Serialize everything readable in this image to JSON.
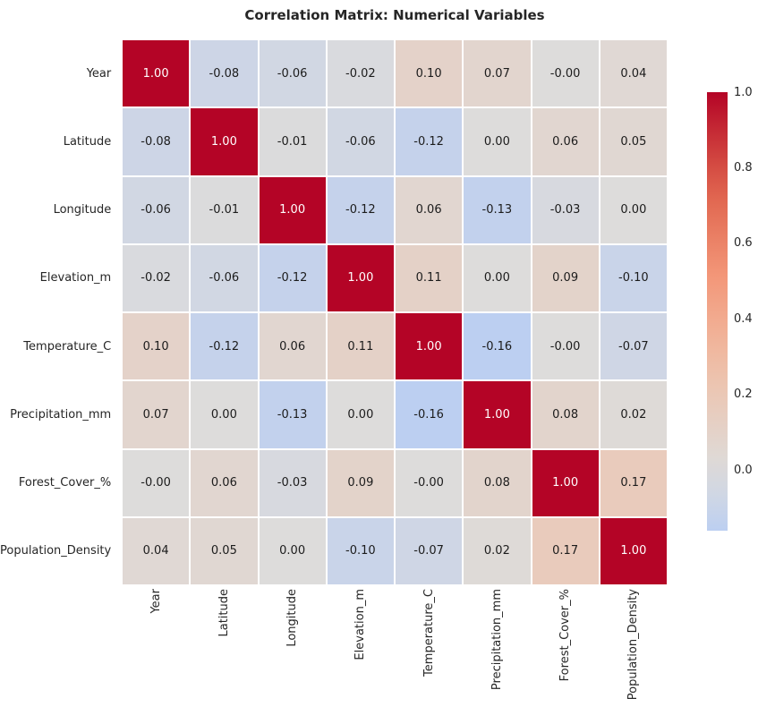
{
  "title": "Correlation Matrix: Numerical Variables",
  "chart_data": {
    "type": "heatmap",
    "title": "Correlation Matrix: Numerical Variables",
    "variables": [
      "Year",
      "Latitude",
      "Longitude",
      "Elevation_m",
      "Temperature_C",
      "Precipitation_mm",
      "Forest_Cover_%",
      "Population_Density"
    ],
    "matrix": [
      [
        1.0,
        -0.08,
        -0.06,
        -0.02,
        0.1,
        0.07,
        -0.0,
        0.04
      ],
      [
        -0.08,
        1.0,
        -0.01,
        -0.06,
        -0.12,
        0.0,
        0.06,
        0.05
      ],
      [
        -0.06,
        -0.01,
        1.0,
        -0.12,
        0.06,
        -0.13,
        -0.03,
        0.0
      ],
      [
        -0.02,
        -0.06,
        -0.12,
        1.0,
        0.11,
        0.0,
        0.09,
        -0.1
      ],
      [
        0.1,
        -0.12,
        0.06,
        0.11,
        1.0,
        -0.16,
        -0.0,
        -0.07
      ],
      [
        0.07,
        0.0,
        -0.13,
        0.0,
        -0.16,
        1.0,
        0.08,
        0.02
      ],
      [
        -0.0,
        0.06,
        -0.03,
        0.09,
        -0.0,
        0.08,
        1.0,
        0.17
      ],
      [
        0.04,
        0.05,
        0.0,
        -0.1,
        -0.07,
        0.02,
        0.17,
        1.0
      ]
    ],
    "annotation_format": "two_decimals",
    "colormap": "coolwarm",
    "center": 0,
    "vmin": -0.16,
    "vmax": 1.0,
    "grid_lines": "white",
    "legend_position": "right-colorbar",
    "colorbar": {
      "tick_labels": [
        "1.0",
        "0.8",
        "0.6",
        "0.4",
        "0.2",
        "0.0"
      ],
      "tick_values": [
        1.0,
        0.8,
        0.6,
        0.4,
        0.2,
        0.0
      ]
    },
    "colors": {
      "max_red": "#b40426",
      "mid_gray": "#dddcdb",
      "min_blue_shown": "#bccff1",
      "cell_text_dark": "#1c1c1c",
      "cell_text_light": "#ffffff",
      "label_text": "#262626",
      "background": "#ffffff"
    }
  }
}
